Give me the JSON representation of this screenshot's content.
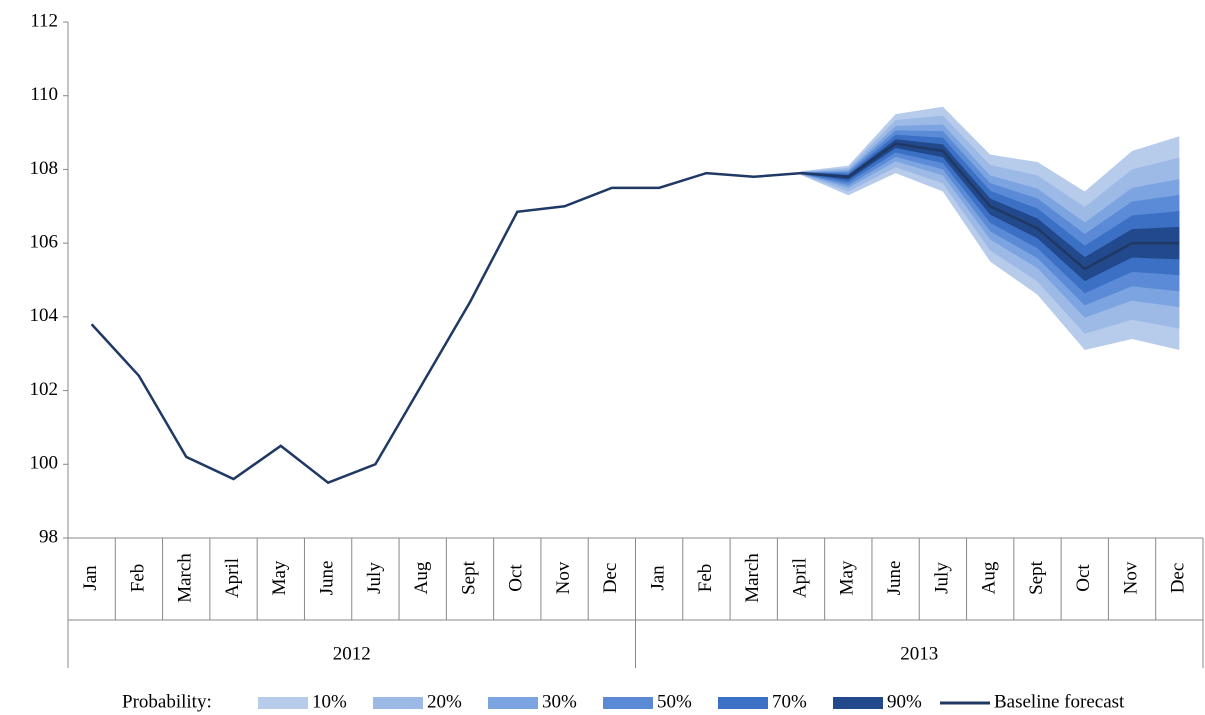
{
  "chart_data": {
    "type": "fan",
    "categories": [
      "Jan",
      "Feb",
      "March",
      "April",
      "May",
      "June",
      "July",
      "Aug",
      "Sept",
      "Oct",
      "Nov",
      "Dec",
      "Jan",
      "Feb",
      "March",
      "April",
      "May",
      "June",
      "July",
      "Aug",
      "Sept",
      "Oct",
      "Nov",
      "Dec"
    ],
    "years": [
      "2012",
      "2013"
    ],
    "ylim": [
      98,
      112
    ],
    "yticks": [
      98,
      100,
      102,
      104,
      106,
      108,
      110,
      112
    ],
    "legend_title": "Probability:",
    "bands": [
      {
        "name": "10%",
        "color": "#b7cbeb",
        "upper": [
          null,
          null,
          null,
          null,
          null,
          null,
          null,
          null,
          null,
          null,
          null,
          null,
          null,
          null,
          null,
          107.95,
          108.1,
          109.5,
          109.7,
          108.4,
          108.2,
          107.4,
          108.5,
          108.9
        ],
        "lower": [
          null,
          null,
          null,
          null,
          null,
          null,
          null,
          null,
          null,
          null,
          null,
          null,
          null,
          null,
          null,
          107.85,
          107.3,
          107.9,
          107.4,
          105.5,
          104.6,
          103.1,
          103.4,
          103.1
        ]
      },
      {
        "name": "20%",
        "color": "#9dbae7",
        "upper": [
          null,
          null,
          null,
          null,
          null,
          null,
          null,
          null,
          null,
          null,
          null,
          null,
          null,
          null,
          null,
          107.94,
          108.04,
          109.34,
          109.46,
          108.12,
          107.84,
          106.98,
          108.0,
          108.32
        ],
        "lower": [
          null,
          null,
          null,
          null,
          null,
          null,
          null,
          null,
          null,
          null,
          null,
          null,
          null,
          null,
          null,
          107.86,
          107.4,
          108.06,
          107.62,
          105.8,
          104.96,
          103.54,
          103.92,
          103.68
        ]
      },
      {
        "name": "30%",
        "color": "#7ca4e0",
        "upper": [
          null,
          null,
          null,
          null,
          null,
          null,
          null,
          null,
          null,
          null,
          null,
          null,
          null,
          null,
          null,
          107.93,
          107.98,
          109.18,
          109.22,
          107.84,
          107.48,
          106.56,
          107.5,
          107.74
        ],
        "lower": [
          null,
          null,
          null,
          null,
          null,
          null,
          null,
          null,
          null,
          null,
          null,
          null,
          null,
          null,
          null,
          107.87,
          107.5,
          108.22,
          107.84,
          106.1,
          105.32,
          103.98,
          104.44,
          104.26
        ]
      },
      {
        "name": "50%",
        "color": "#5b8bd6",
        "upper": [
          null,
          null,
          null,
          null,
          null,
          null,
          null,
          null,
          null,
          null,
          null,
          null,
          null,
          null,
          null,
          107.92,
          107.94,
          109.06,
          109.04,
          107.63,
          107.21,
          106.25,
          107.13,
          107.31
        ],
        "lower": [
          null,
          null,
          null,
          null,
          null,
          null,
          null,
          null,
          null,
          null,
          null,
          null,
          null,
          null,
          null,
          107.88,
          107.57,
          108.34,
          108.0,
          106.32,
          105.59,
          104.31,
          104.83,
          104.69
        ]
      },
      {
        "name": "70%",
        "color": "#3b70c5",
        "upper": [
          null,
          null,
          null,
          null,
          null,
          null,
          null,
          null,
          null,
          null,
          null,
          null,
          null,
          null,
          null,
          107.92,
          107.89,
          108.94,
          108.86,
          107.42,
          106.94,
          105.93,
          106.75,
          106.87
        ],
        "lower": [
          null,
          null,
          null,
          null,
          null,
          null,
          null,
          null,
          null,
          null,
          null,
          null,
          null,
          null,
          null,
          107.88,
          107.65,
          108.46,
          108.17,
          106.55,
          105.86,
          104.64,
          105.22,
          105.13
        ]
      },
      {
        "name": "90%",
        "color": "#21498c",
        "upper": [
          null,
          null,
          null,
          null,
          null,
          null,
          null,
          null,
          null,
          null,
          null,
          null,
          null,
          null,
          null,
          107.91,
          107.85,
          108.82,
          108.68,
          107.21,
          106.67,
          105.62,
          106.38,
          106.44
        ],
        "lower": [
          null,
          null,
          null,
          null,
          null,
          null,
          null,
          null,
          null,
          null,
          null,
          null,
          null,
          null,
          null,
          107.89,
          107.72,
          108.58,
          108.33,
          106.77,
          106.13,
          104.97,
          105.61,
          105.56
        ]
      }
    ],
    "series": [
      {
        "name": "Baseline forecast",
        "color": "#1f3864",
        "values": [
          103.8,
          102.4,
          100.2,
          99.6,
          100.5,
          99.5,
          100.0,
          102.2,
          104.4,
          106.85,
          107.0,
          107.5,
          107.5,
          107.9,
          107.8,
          107.9,
          107.8,
          108.7,
          108.5,
          107.0,
          106.4,
          105.3,
          106.0,
          106.0
        ]
      }
    ]
  }
}
